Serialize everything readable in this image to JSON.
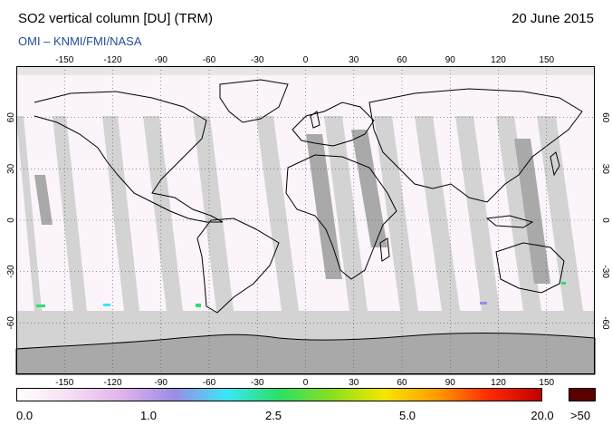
{
  "header": {
    "title": "SO2 vertical column [DU] (TRM)",
    "date": "20 June 2015",
    "credit": "OMI  –  KNMI/FMI/NASA"
  },
  "map": {
    "lon_ticks": [
      "-150",
      "-120",
      "-90",
      "-60",
      "-30",
      "0",
      "30",
      "60",
      "90",
      "120",
      "150"
    ],
    "lat_ticks": [
      "60",
      "30",
      "0",
      "-30",
      "-60"
    ],
    "colors": {
      "ocean": "#ffffff",
      "no_data": "#d3d3d3",
      "orbit_gap": "#a9a9a9",
      "coastline": "#000000",
      "grid": "#555555"
    }
  },
  "colorbar": {
    "labels": [
      "0.0",
      "1.0",
      "2.5",
      "5.0",
      "20.0"
    ],
    "overflow_label": ">50",
    "overflow_color": "#5a0000",
    "stops": [
      "#ffffff",
      "#f6ddf3",
      "#e2b2ea",
      "#9b8ce6",
      "#3be6f5",
      "#2ae066",
      "#89e01c",
      "#f5e600",
      "#ff9c00",
      "#ff2a00",
      "#c00000"
    ]
  }
}
